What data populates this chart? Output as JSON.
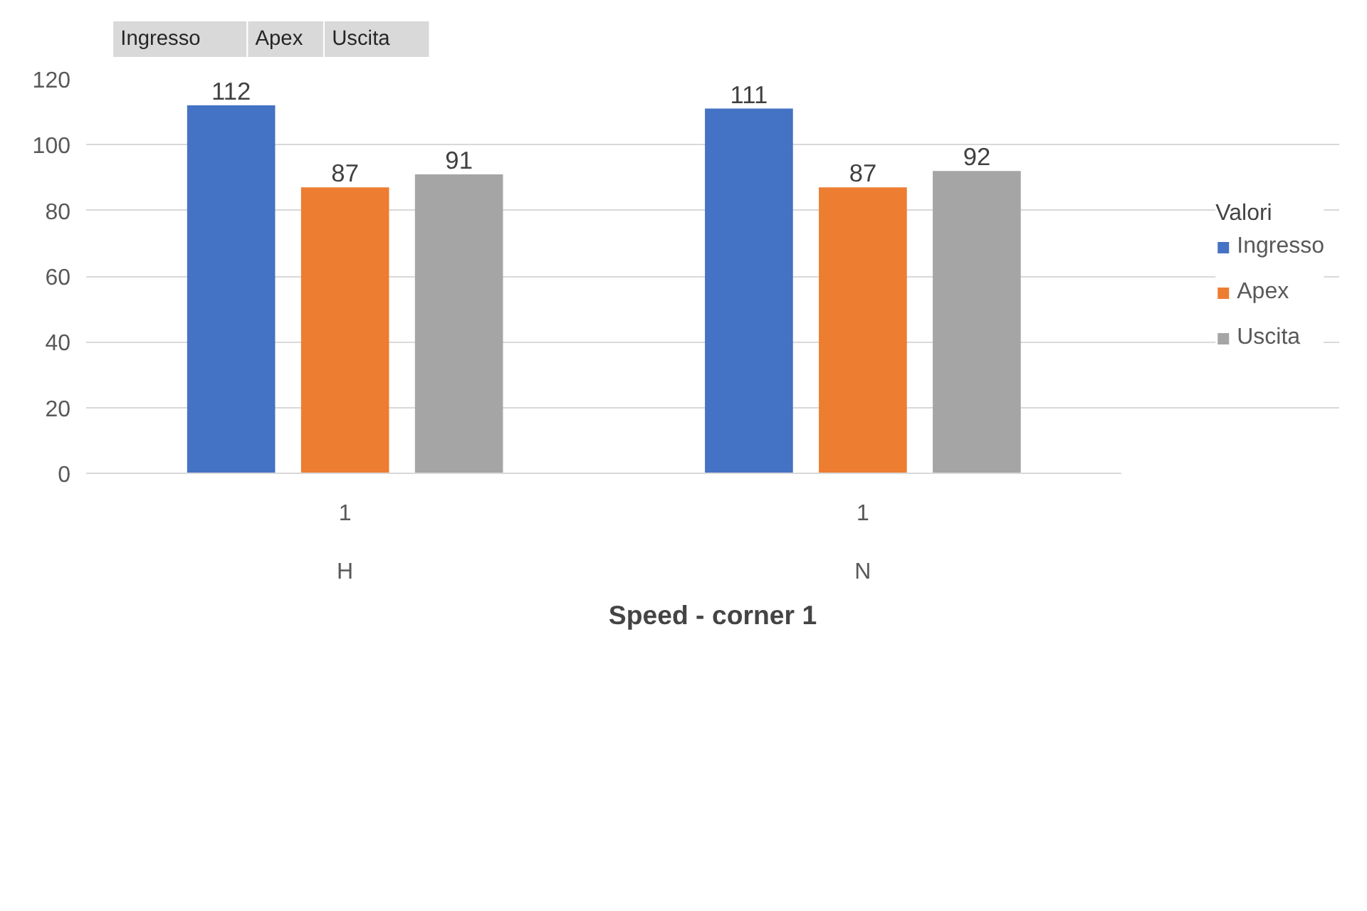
{
  "chart_data": {
    "type": "bar",
    "xlabel": "Speed - corner 1",
    "legend_title": "Valori",
    "legend": "right",
    "categories": [
      "1",
      "1"
    ],
    "series": [
      {
        "name": "Ingresso",
        "color": "#4472c4",
        "values": [
          112,
          111
        ]
      },
      {
        "name": "Apex",
        "color": "#ed7d31",
        "values": [
          87,
          87
        ]
      },
      {
        "name": "Uscita",
        "color": "#a5a5a5",
        "values": [
          91,
          92
        ]
      }
    ],
    "ylim": [
      0,
      120
    ],
    "yticks": [
      0,
      20,
      40,
      60,
      80,
      100,
      120
    ],
    "grid": "y",
    "data_labels": true,
    "annotations": [
      "H",
      "N",
      "Ingresso",
      "Apex",
      "Uscita"
    ]
  }
}
